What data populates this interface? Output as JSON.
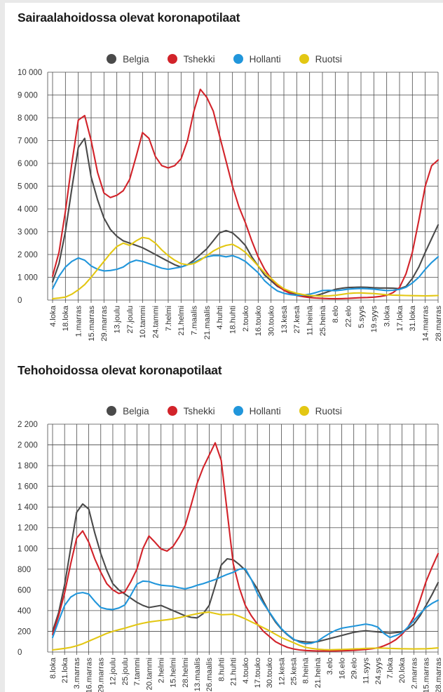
{
  "page": {
    "background": "#ffffff",
    "left_strip_color": "#e9e9e9",
    "top_strip_color": "#e9e9e9",
    "grid_color": "#4a4a4a",
    "axis_text_color": "#333333"
  },
  "chart_data": [
    {
      "type": "line",
      "title": "Sairaalahoidossa olevat koronapotilaat",
      "legend_position": "top",
      "grid": true,
      "y_axis": {
        "min": 0,
        "max": 10000,
        "step": 1000,
        "tick_labels": [
          "10 000",
          "9 000",
          "8 000",
          "7 000",
          "6 000",
          "5 000",
          "4 000",
          "3 000",
          "2 000",
          "1 000",
          "0"
        ]
      },
      "x_tick_labels": [
        "4.loka",
        "18.loka",
        "1.marras",
        "15.marras",
        "29.marras",
        "13.joulu",
        "27.joulu",
        "10.tammi",
        "24.tammi",
        "7.helmi",
        "21.helmi",
        "7.maalis",
        "21.maalis",
        "4.huhti",
        "18.huhti",
        "2.touko",
        "16.touko",
        "30.touko",
        "13.kesä",
        "27.kesä",
        "11.heinä",
        "25.heinä",
        "8.elo",
        "22.elo",
        "5.syys",
        "19.syys",
        "3.loka",
        "17.loka",
        "31.loka",
        "14.marras",
        "28.marras"
      ],
      "points_per_tick_interval": 2,
      "series": [
        {
          "name": "Belgia",
          "color": "#4a4a4a",
          "values": [
            800,
            1600,
            3000,
            4900,
            6700,
            7100,
            5400,
            4400,
            3600,
            3100,
            2800,
            2600,
            2500,
            2400,
            2300,
            2150,
            2000,
            1850,
            1700,
            1550,
            1450,
            1550,
            1750,
            2000,
            2250,
            2600,
            2950,
            3050,
            2950,
            2700,
            2400,
            1900,
            1500,
            1100,
            850,
            600,
            450,
            320,
            230,
            180,
            160,
            200,
            280,
            380,
            470,
            520,
            550,
            560,
            570,
            560,
            540,
            530,
            530,
            520,
            500,
            600,
            950,
            1450,
            2100,
            2700,
            3300
          ]
        },
        {
          "name": "Tshekki",
          "color": "#d2232a",
          "values": [
            1050,
            2100,
            3900,
            6000,
            7900,
            8100,
            7000,
            5600,
            4700,
            4500,
            4600,
            4800,
            5300,
            6300,
            7350,
            7100,
            6300,
            5900,
            5800,
            5900,
            6200,
            7000,
            8300,
            9250,
            8900,
            8300,
            7200,
            6100,
            5000,
            4100,
            3400,
            2600,
            1900,
            1350,
            950,
            650,
            430,
            290,
            200,
            150,
            110,
            90,
            75,
            65,
            60,
            65,
            75,
            90,
            105,
            115,
            130,
            160,
            210,
            330,
            550,
            1150,
            2100,
            3500,
            5000,
            5900,
            6150
          ]
        },
        {
          "name": "Hollanti",
          "color": "#2196db",
          "values": [
            500,
            1050,
            1450,
            1700,
            1850,
            1750,
            1500,
            1350,
            1280,
            1300,
            1350,
            1450,
            1650,
            1750,
            1700,
            1600,
            1500,
            1400,
            1350,
            1400,
            1450,
            1550,
            1650,
            1800,
            1900,
            1950,
            1950,
            1900,
            1950,
            1850,
            1700,
            1450,
            1200,
            850,
            600,
            400,
            300,
            240,
            210,
            220,
            260,
            330,
            420,
            430,
            410,
            440,
            480,
            500,
            510,
            500,
            480,
            450,
            420,
            430,
            470,
            560,
            750,
            1000,
            1350,
            1650,
            1900
          ]
        },
        {
          "name": "Ruotsi",
          "color": "#e3c713",
          "values": [
            60,
            90,
            130,
            260,
            450,
            680,
            1000,
            1350,
            1700,
            2050,
            2350,
            2500,
            2400,
            2600,
            2750,
            2700,
            2500,
            2200,
            1950,
            1750,
            1600,
            1550,
            1600,
            1750,
            1950,
            2150,
            2300,
            2400,
            2450,
            2300,
            2100,
            1800,
            1500,
            1200,
            950,
            700,
            500,
            380,
            300,
            240,
            200,
            185,
            175,
            185,
            210,
            250,
            290,
            310,
            315,
            300,
            285,
            260,
            235,
            220,
            210,
            200,
            195,
            190,
            185,
            190,
            200
          ]
        }
      ]
    },
    {
      "type": "line",
      "title": "Tehohoidossa olevat koronapotilaat",
      "legend_position": "top",
      "grid": true,
      "y_axis": {
        "min": 0,
        "max": 2200,
        "step": 200,
        "tick_labels": [
          "2 200",
          "2 000",
          "1 800",
          "1 600",
          "1 400",
          "1 200",
          "1 000",
          "800",
          "600",
          "400",
          "200",
          "0"
        ]
      },
      "x_tick_labels": [
        "8.loka",
        "21.loka",
        "3.marras",
        "16.marras",
        "29.marras",
        "12.joulu",
        "25.joulu",
        "7.tammi",
        "20.tammi",
        "2.helmi",
        "15.helmi",
        "28.helmi",
        "13.maalis",
        "26.maalis",
        "8.huhti",
        "21.huhti",
        "4.touko",
        "17.touko",
        "30.touko",
        "12.kesä",
        "25.kesä",
        "8.heinä",
        "21.heinä",
        "3.elo",
        "16.elo",
        "29.elo",
        "11.syys",
        "24.syys",
        "7.loka",
        "20.loka",
        "2.marras",
        "15.marras",
        "28.marras"
      ],
      "points_per_tick_interval": 2,
      "series": [
        {
          "name": "Belgia",
          "color": "#4a4a4a",
          "values": [
            200,
            380,
            650,
            1000,
            1350,
            1430,
            1380,
            1150,
            950,
            790,
            660,
            600,
            560,
            520,
            480,
            450,
            430,
            440,
            450,
            425,
            400,
            375,
            350,
            335,
            330,
            370,
            450,
            640,
            840,
            900,
            890,
            845,
            790,
            700,
            610,
            490,
            380,
            290,
            220,
            165,
            120,
            105,
            98,
            95,
            100,
            115,
            130,
            145,
            160,
            175,
            190,
            200,
            205,
            200,
            195,
            188,
            183,
            188,
            195,
            225,
            270,
            350,
            450,
            555,
            670
          ]
        },
        {
          "name": "Tshekki",
          "color": "#d2232a",
          "values": [
            170,
            350,
            570,
            850,
            1100,
            1170,
            1060,
            900,
            770,
            660,
            600,
            565,
            580,
            680,
            800,
            1000,
            1120,
            1060,
            995,
            975,
            1020,
            1110,
            1220,
            1420,
            1630,
            1780,
            1900,
            2020,
            1850,
            1350,
            850,
            620,
            450,
            350,
            270,
            200,
            150,
            100,
            70,
            45,
            30,
            20,
            15,
            12,
            10,
            10,
            10,
            10,
            12,
            14,
            16,
            20,
            25,
            32,
            40,
            60,
            85,
            120,
            170,
            240,
            340,
            500,
            680,
            820,
            950
          ]
        },
        {
          "name": "Hollanti",
          "color": "#2196db",
          "values": [
            140,
            300,
            450,
            530,
            565,
            575,
            560,
            490,
            430,
            415,
            410,
            425,
            455,
            550,
            655,
            685,
            680,
            660,
            645,
            640,
            635,
            620,
            610,
            625,
            645,
            660,
            680,
            700,
            725,
            750,
            770,
            800,
            805,
            700,
            565,
            470,
            385,
            300,
            225,
            170,
            125,
            95,
            80,
            85,
            105,
            145,
            180,
            210,
            230,
            240,
            250,
            260,
            270,
            260,
            240,
            180,
            140,
            160,
            185,
            240,
            305,
            370,
            430,
            470,
            500
          ]
        },
        {
          "name": "Ruotsi",
          "color": "#e3c713",
          "values": [
            20,
            28,
            35,
            45,
            60,
            80,
            105,
            130,
            155,
            180,
            200,
            215,
            230,
            248,
            265,
            278,
            290,
            298,
            305,
            312,
            320,
            332,
            345,
            358,
            370,
            380,
            385,
            372,
            360,
            362,
            365,
            345,
            320,
            292,
            265,
            235,
            205,
            172,
            140,
            115,
            90,
            65,
            45,
            35,
            28,
            24,
            22,
            23,
            25,
            27,
            30,
            32,
            35,
            37,
            38,
            37,
            35,
            33,
            32,
            31,
            30,
            31,
            32,
            35,
            40
          ]
        }
      ]
    }
  ]
}
